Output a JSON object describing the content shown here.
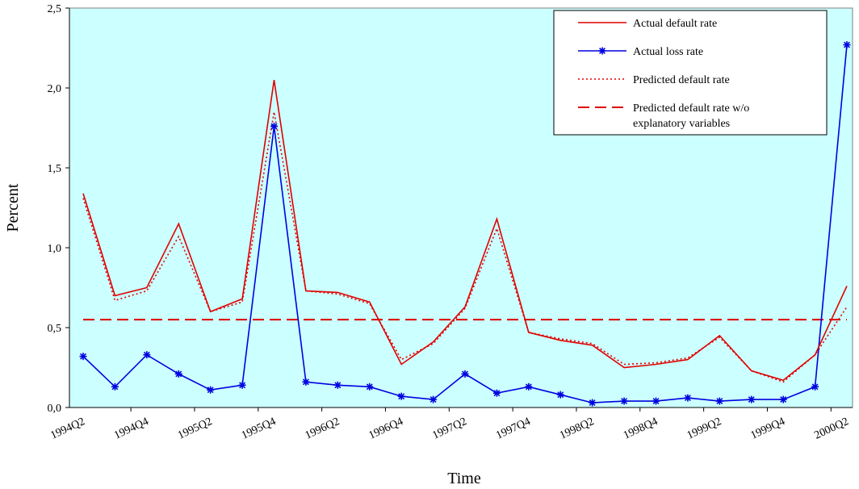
{
  "chart_data": {
    "type": "line",
    "xlabel": "Time",
    "ylabel": "Percent",
    "ylim": [
      0,
      2.5
    ],
    "yticks": [
      "0,0",
      "0,5",
      "1,0",
      "1,5",
      "2,0",
      "2,5"
    ],
    "ytick_values": [
      0,
      0.5,
      1.0,
      1.5,
      2.0,
      2.5
    ],
    "categories": [
      "1994Q2",
      "1994Q3",
      "1994Q4",
      "1995Q1",
      "1995Q2",
      "1995Q3",
      "1995Q4",
      "1996Q1",
      "1996Q2",
      "1996Q3",
      "1996Q4",
      "1997Q1",
      "1997Q2",
      "1997Q3",
      "1997Q4",
      "1998Q1",
      "1998Q2",
      "1998Q3",
      "1998Q4",
      "1999Q1",
      "1999Q2",
      "1999Q3",
      "1999Q4",
      "2000Q1",
      "2000Q2"
    ],
    "xtick_labels": [
      "1994Q2",
      "1994Q4",
      "1995Q2",
      "1995Q4",
      "1996Q2",
      "1996Q4",
      "1997Q2",
      "1997Q4",
      "1998Q2",
      "1998Q4",
      "1999Q2",
      "1999Q4",
      "2000Q2"
    ],
    "series": [
      {
        "name": "Actual default rate",
        "color": "#e00000",
        "style": "solid",
        "marker": "none",
        "values": [
          1.34,
          0.7,
          0.75,
          1.15,
          0.6,
          0.68,
          2.05,
          0.73,
          0.72,
          0.66,
          0.27,
          0.41,
          0.63,
          1.18,
          0.47,
          0.42,
          0.39,
          0.25,
          0.27,
          0.3,
          0.45,
          0.23,
          0.17,
          0.33,
          0.76
        ]
      },
      {
        "name": "Actual loss rate",
        "color": "#0000e0",
        "style": "solid",
        "marker": "star",
        "values": [
          0.32,
          0.13,
          0.33,
          0.21,
          0.11,
          0.14,
          1.76,
          0.16,
          0.14,
          0.13,
          0.07,
          0.05,
          0.21,
          0.09,
          0.13,
          0.08,
          0.03,
          0.04,
          0.04,
          0.06,
          0.04,
          0.05,
          0.05,
          0.13,
          2.27
        ]
      },
      {
        "name": "Predicted default rate",
        "color": "#e00000",
        "style": "dotted",
        "marker": "none",
        "values": [
          1.31,
          0.67,
          0.73,
          1.07,
          0.6,
          0.66,
          1.85,
          0.73,
          0.71,
          0.65,
          0.3,
          0.4,
          0.62,
          1.12,
          0.47,
          0.43,
          0.4,
          0.27,
          0.28,
          0.31,
          0.44,
          0.23,
          0.16,
          0.33,
          0.63
        ]
      },
      {
        "name": "Predicted default rate w/o explanatory variables",
        "name_lines": [
          "Predicted default rate w/o",
          "explanatory variables"
        ],
        "color": "#e00000",
        "style": "dashed",
        "marker": "none",
        "values": [
          0.55,
          0.55,
          0.55,
          0.55,
          0.55,
          0.55,
          0.55,
          0.55,
          0.55,
          0.55,
          0.55,
          0.55,
          0.55,
          0.55,
          0.55,
          0.55,
          0.55,
          0.55,
          0.55,
          0.55,
          0.55,
          0.55,
          0.55,
          0.55,
          0.55
        ]
      }
    ],
    "legend_position": "top-right",
    "plot_background": "#ccffff",
    "grid": false
  }
}
